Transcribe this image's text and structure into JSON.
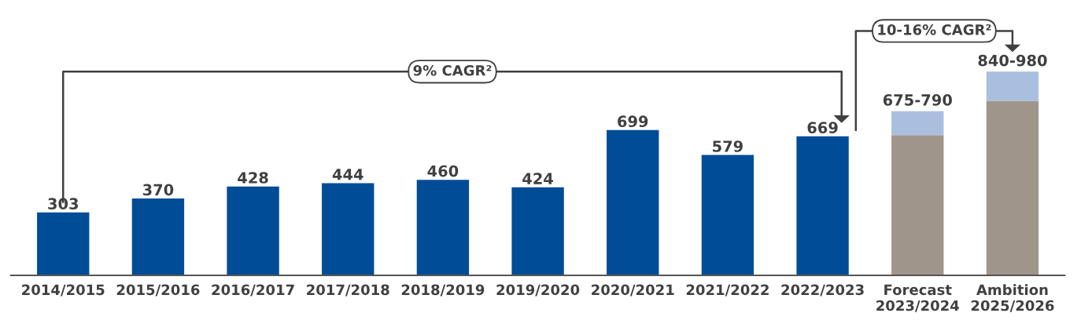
{
  "chart_data": {
    "type": "bar",
    "stacked": true,
    "categories": [
      "2014/2015",
      "2015/2016",
      "2016/2017",
      "2017/2018",
      "2018/2019",
      "2019/2020",
      "2020/2021",
      "2021/2022",
      "2022/2023",
      "Forecast\n2023/2024",
      "Ambition\n2025/2026"
    ],
    "series": [
      {
        "colors": [
          "#004c97",
          "#004c97",
          "#004c97",
          "#004c97",
          "#004c97",
          "#004c97",
          "#004c97",
          "#004c97",
          "#004c97",
          "#a0958a",
          "#a0958a"
        ],
        "values": [
          303,
          370,
          428,
          444,
          460,
          424,
          699,
          579,
          669,
          675,
          840
        ],
        "value_labels": [
          "303",
          "370",
          "428",
          "444",
          "460",
          "424",
          "699",
          "579",
          "669",
          null,
          null
        ]
      },
      {
        "color": "#aabfe0",
        "values": [
          null,
          null,
          null,
          null,
          null,
          null,
          null,
          null,
          null,
          115,
          140
        ]
      }
    ],
    "totals": [
      null,
      null,
      null,
      null,
      null,
      null,
      null,
      null,
      null,
      "675-790",
      "840-980"
    ],
    "annotations": [
      "9% CAGR²",
      "10-16% CAGR²"
    ],
    "legend": false,
    "grid": false
  }
}
